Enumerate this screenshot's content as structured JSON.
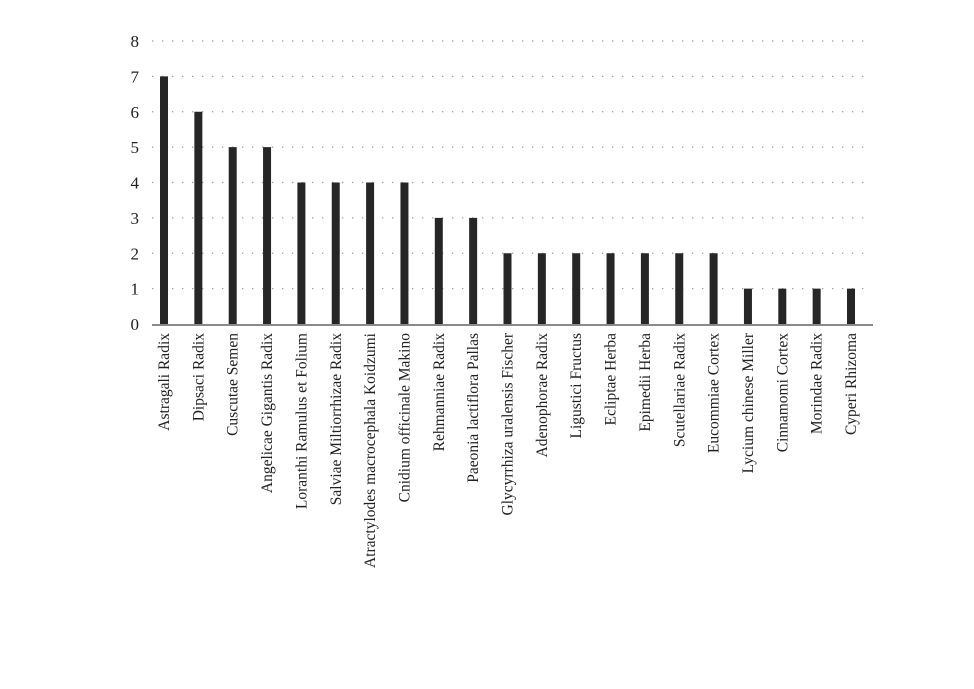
{
  "chart_data": {
    "type": "bar",
    "categories": [
      "Astragali Radix",
      "Dipsaci Radix",
      "Cuscutae Semen",
      "Angelicae Gigantis Radix",
      "Loranthi Ramulus et Folium",
      "Salviae Miltiorrhizae Radix",
      "Atractylodes macrocephala Koidzumi",
      "Cnidium officinale Makino",
      "Rehmanniae Radix",
      "Paeonia lactiflora Pallas",
      "Glycyrrhiza uralensis Fischer",
      "Adenophorae Radix",
      "Ligustici Fructus",
      "Ecliptae Herba",
      "Epimedii Herba",
      "Scutellariae Radix",
      "Eucommiae Cortex",
      "Lycium chinese Miller",
      "Cinnamomi Cortex",
      "Morindae Radix",
      "Cyperi Rhizoma"
    ],
    "values": [
      7,
      6,
      5,
      5,
      4,
      4,
      4,
      4,
      3,
      3,
      2,
      2,
      2,
      2,
      2,
      2,
      2,
      1,
      1,
      1,
      1
    ],
    "ylim": [
      0,
      8
    ],
    "yticks": [
      "0",
      "1",
      "2",
      "3",
      "4",
      "5",
      "6",
      "7",
      "8"
    ],
    "grid": true,
    "bar_color": "#262626",
    "axis_color": "#8a8a8a",
    "grid_color": "#9a9a9a"
  }
}
